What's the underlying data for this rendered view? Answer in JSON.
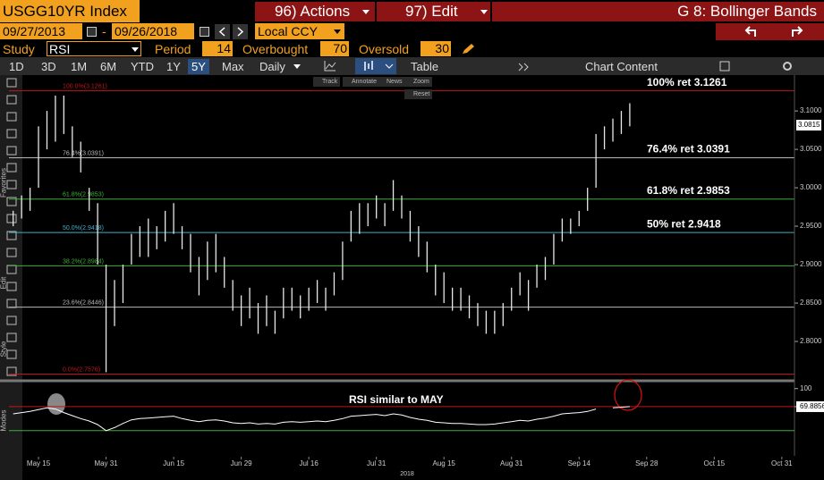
{
  "header": {
    "ticker": "USGG10YR Index",
    "actions": "96) Actions",
    "edit": "97) Edit",
    "title": "G 8: Bollinger Bands"
  },
  "controls": {
    "start_date": "09/27/2013",
    "date_separator": "-",
    "end_date": "09/26/2018",
    "currency": "Local CCY",
    "study_label": "Study",
    "study": "RSI",
    "period_label": "Period",
    "period": 14,
    "overbought_label": "Overbought",
    "overbought": 70,
    "oversold_label": "Oversold",
    "oversold": 30
  },
  "range_tabs": [
    "1D",
    "3D",
    "1M",
    "6M",
    "YTD",
    "1Y",
    "5Y",
    "Max",
    "Daily"
  ],
  "table_label": "Table",
  "chart_content": "Chart Content",
  "chart_tools": [
    "Track",
    "Annotate",
    "News",
    "Zoom",
    "Reset"
  ],
  "sidebar": [
    "Favorites",
    "Edit",
    "Style",
    "Modes"
  ],
  "chart_data": {
    "type": "ohlc",
    "categories": [
      null,
      null,
      null,
      "May 15",
      null,
      null,
      null,
      null,
      null,
      null,
      null,
      "May 31",
      null,
      null,
      null,
      null,
      null,
      null,
      null,
      "Jun 15",
      null,
      null,
      null,
      null,
      null,
      null,
      null,
      "Jun 29",
      null,
      null,
      null,
      null,
      null,
      null,
      null,
      "Jul 16",
      null,
      null,
      null,
      null,
      null,
      null,
      null,
      "Jul 31",
      null,
      null,
      null,
      null,
      null,
      null,
      null,
      "Aug 15",
      null,
      null,
      null,
      null,
      null,
      null,
      null,
      "Aug 31",
      null,
      null,
      null,
      null,
      null,
      null,
      null,
      "Sep 14",
      null,
      null,
      null,
      null,
      null,
      null,
      null,
      "Sep 28",
      null,
      null,
      null,
      null,
      null,
      null,
      null,
      "Oct 15",
      null,
      null,
      null,
      null,
      null,
      null,
      null,
      "Oct 31",
      null
    ],
    "year_label": "2018",
    "high": [
      2.97,
      2.99,
      3.0,
      3.08,
      3.1,
      3.12,
      3.12,
      3.08,
      3.06,
      3.0,
      2.98,
      2.9,
      2.88,
      2.9,
      2.94,
      2.95,
      2.96,
      2.95,
      2.97,
      2.98,
      2.95,
      2.94,
      2.91,
      2.93,
      2.94,
      2.91,
      2.88,
      2.86,
      2.87,
      2.85,
      2.86,
      2.84,
      2.87,
      2.87,
      2.86,
      2.87,
      2.88,
      2.87,
      2.89,
      2.93,
      2.97,
      2.98,
      2.98,
      2.99,
      2.98,
      3.01,
      2.99,
      2.97,
      2.95,
      2.93,
      2.9,
      2.89,
      2.87,
      2.87,
      2.86,
      2.85,
      2.84,
      2.84,
      2.85,
      2.87,
      2.89,
      2.88,
      2.9,
      2.91,
      2.94,
      2.96,
      2.96,
      2.97,
      3.0,
      3.07,
      3.08,
      3.09,
      3.1,
      3.11,
      null,
      null,
      null,
      null,
      null,
      null,
      null,
      null,
      null,
      null,
      null,
      null,
      null,
      null,
      null,
      null,
      null,
      null,
      null
    ],
    "low": [
      2.95,
      2.96,
      2.97,
      3.0,
      3.05,
      3.06,
      3.07,
      3.04,
      3.02,
      2.97,
      2.9,
      2.76,
      2.82,
      2.85,
      2.9,
      2.91,
      2.91,
      2.92,
      2.93,
      2.94,
      2.92,
      2.89,
      2.86,
      2.88,
      2.89,
      2.87,
      2.84,
      2.82,
      2.83,
      2.81,
      2.82,
      2.81,
      2.83,
      2.84,
      2.83,
      2.84,
      2.85,
      2.84,
      2.86,
      2.88,
      2.93,
      2.94,
      2.95,
      2.96,
      2.95,
      2.97,
      2.96,
      2.93,
      2.91,
      2.89,
      2.86,
      2.85,
      2.84,
      2.84,
      2.83,
      2.82,
      2.81,
      2.81,
      2.82,
      2.84,
      2.86,
      2.84,
      2.87,
      2.88,
      2.9,
      2.93,
      2.94,
      2.95,
      2.97,
      3.0,
      3.05,
      3.06,
      3.07,
      3.08,
      null,
      null,
      null,
      null,
      null,
      null,
      null,
      null,
      null,
      null,
      null,
      null,
      null,
      null,
      null,
      null,
      null,
      null,
      null
    ],
    "ylim": [
      2.75,
      3.142
    ],
    "yticks": [
      {
        "value": 3.1,
        "label": "3.1000"
      },
      {
        "value": 3.05,
        "label": "3.0500"
      },
      {
        "value": 3.0,
        "label": "3.0000"
      },
      {
        "value": 2.95,
        "label": "2.9500"
      },
      {
        "value": 2.9,
        "label": "2.9000"
      },
      {
        "value": 2.85,
        "label": "2.8500"
      },
      {
        "value": 2.8,
        "label": "2.8000"
      }
    ],
    "last_price": 3.0815,
    "levels": [
      {
        "value": 3.1261,
        "color": "#c0161b",
        "small_label": "100.0%(3.1261)",
        "label": "100% ret 3.1261"
      },
      {
        "value": 3.0391,
        "color": "#b8b8b8",
        "small_label": "76.4%(3.0391)",
        "label": "76.4% ret 3.0391"
      },
      {
        "value": 2.9853,
        "color": "#3fae3a",
        "small_label": "61.8%(2.9853)",
        "label": "61.8% ret 2.9853"
      },
      {
        "value": 2.9418,
        "color": "#3fb0c8",
        "small_label": "50.0%(2.9418)",
        "label": "50% ret 2.9418"
      },
      {
        "value": 2.8984,
        "color": "#3fae3a",
        "small_label": "38.2%(2.8984)"
      },
      {
        "value": 2.8446,
        "color": "#b8b8b8",
        "small_label": "23.6%(2.8446)"
      },
      {
        "value": 2.7576,
        "color": "#c0161b",
        "small_label": "0.0%(2.7576)"
      }
    ],
    "rsi": {
      "values": [
        58,
        60,
        62,
        65,
        68,
        66,
        60,
        55,
        50,
        46,
        40,
        30,
        35,
        42,
        48,
        50,
        51,
        52,
        53,
        54,
        50,
        47,
        45,
        47,
        48,
        46,
        43,
        42,
        43,
        41,
        42,
        41,
        44,
        45,
        44,
        45,
        46,
        45,
        47,
        50,
        54,
        55,
        56,
        57,
        55,
        58,
        56,
        52,
        49,
        47,
        44,
        43,
        42,
        42,
        41,
        40,
        40,
        41,
        43,
        45,
        47,
        46,
        49,
        51,
        54,
        58,
        59,
        60,
        62,
        66,
        null,
        68,
        69,
        70,
        null,
        null,
        null,
        null,
        null,
        null,
        null,
        null,
        null,
        null,
        null,
        null,
        null,
        null,
        null,
        null,
        null,
        null,
        null
      ],
      "ylim": [
        -12,
        110
      ],
      "yticks": [
        100,
        69.8856
      ],
      "annotation": "RSI similar to MAY"
    }
  }
}
